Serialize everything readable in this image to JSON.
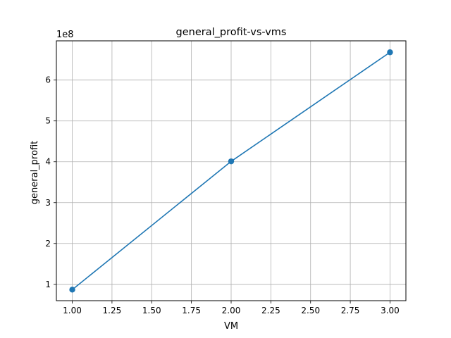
{
  "chart_data": {
    "type": "line",
    "title": "general_profit-vs-vms",
    "xlabel": "VM",
    "ylabel": "general_profit",
    "y_offset_label": "1e8",
    "xlim": [
      0.9,
      3.1
    ],
    "ylim": [
      0.6,
      6.96
    ],
    "x_ticks": [
      1.0,
      1.25,
      1.5,
      1.75,
      2.0,
      2.25,
      2.5,
      2.75,
      3.0
    ],
    "x_tick_labels": [
      "1.00",
      "1.25",
      "1.50",
      "1.75",
      "2.00",
      "2.25",
      "2.50",
      "2.75",
      "3.00"
    ],
    "y_ticks": [
      1,
      2,
      3,
      4,
      5,
      6
    ],
    "y_tick_labels": [
      "1",
      "2",
      "3",
      "4",
      "5",
      "6"
    ],
    "grid": true,
    "series": [
      {
        "x": [
          1,
          2,
          3
        ],
        "y": [
          0.87,
          4.01,
          6.68
        ],
        "color": "#1f77b4",
        "marker": "circle"
      }
    ]
  }
}
